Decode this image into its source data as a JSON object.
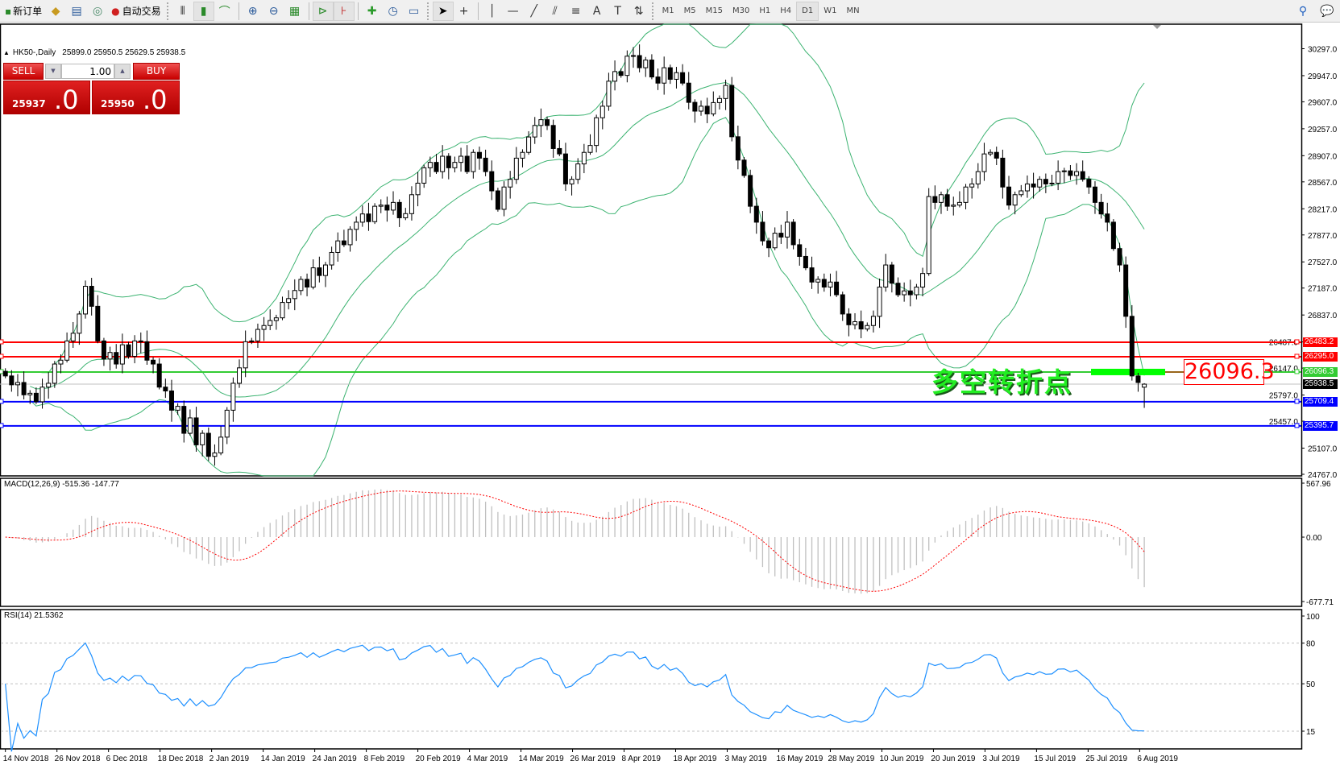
{
  "toolbar": {
    "new_order": "新订单",
    "auto_trading": "自动交易",
    "timeframes": [
      "M1",
      "M5",
      "M15",
      "M30",
      "H1",
      "H4",
      "D1",
      "W1",
      "MN"
    ],
    "active_timeframe": "D1",
    "text_tool": "A"
  },
  "header": {
    "symbol": "HK50-,Daily",
    "ohlc": "25899.0 25950.5 25629.5 25938.5"
  },
  "trade_panel": {
    "sell_label": "SELL",
    "buy_label": "BUY",
    "volume": "1.00",
    "sell_price_main": "25937",
    "sell_price_big": ".0",
    "buy_price_main": "25950",
    "buy_price_big": ".0",
    "color": "#d01010"
  },
  "annotation": {
    "text": "多空转折点",
    "price_box": "26096.3"
  },
  "hlines": [
    {
      "value": 26483.2,
      "label": "26483.2",
      "color": "#ff0000"
    },
    {
      "value": 26295.0,
      "label": "26295.0",
      "color": "#ff0000"
    },
    {
      "value": 26096.3,
      "label": "26096.3",
      "color": "#33cc33"
    },
    {
      "value": 25938.5,
      "label": "25938.5",
      "color": "#000000"
    },
    {
      "value": 25709.4,
      "label": "25709.4",
      "color": "#0000ff"
    },
    {
      "value": 25395.7,
      "label": "25395.7",
      "color": "#0000ff"
    }
  ],
  "macd": {
    "title": "MACD(12,26,9) -515.36 -147.77",
    "axis": [
      "567.96",
      "0.00",
      "-677.71"
    ],
    "range": [
      -677.71,
      567.96
    ]
  },
  "rsi": {
    "title": "RSI(14) 21.5362",
    "axis": [
      "100",
      "80",
      "50",
      "15"
    ],
    "levels": [
      80,
      50,
      15
    ]
  },
  "chart_data": {
    "type": "candlestick",
    "symbol": "HK50-",
    "timeframe": "Daily",
    "ylim": [
      24767.0,
      30297.0
    ],
    "y_ticks": [
      "30297.0",
      "29947.0",
      "29607.0",
      "29257.0",
      "28907.0",
      "28567.0",
      "28217.0",
      "27877.0",
      "27527.0",
      "27187.0",
      "26837.0",
      "26487.0",
      "26147.0",
      "25797.0",
      "25457.0",
      "25107.0",
      "24767.0"
    ],
    "x_ticks": [
      "14 Nov 2018",
      "26 Nov 2018",
      "6 Dec 2018",
      "18 Dec 2018",
      "2 Jan 2019",
      "14 Jan 2019",
      "24 Jan 2019",
      "8 Feb 2019",
      "20 Feb 2019",
      "4 Mar 2019",
      "14 Mar 2019",
      "26 Mar 2019",
      "8 Apr 2019",
      "18 Apr 2019",
      "3 May 2019",
      "16 May 2019",
      "28 May 2019",
      "10 Jun 2019",
      "20 Jun 2019",
      "3 Jul 2019",
      "15 Jul 2019",
      "25 Jul 2019",
      "6 Aug 2019"
    ],
    "last_bar": {
      "open": 25899.0,
      "high": 25950.5,
      "low": 25629.5,
      "close": 25938.5
    },
    "closes": [
      26045,
      25930,
      25960,
      25800,
      25820,
      25710,
      25900,
      25950,
      26200,
      26250,
      26500,
      26600,
      26850,
      27210,
      26950,
      26500,
      26265,
      26350,
      26200,
      26450,
      26300,
      26500,
      26490,
      26250,
      26200,
      25900,
      25850,
      25600,
      25650,
      25300,
      25500,
      25150,
      25300,
      25000,
      25045,
      25250,
      25600,
      25950,
      26150,
      26490,
      26500,
      26650,
      26700,
      26765,
      26800,
      27000,
      27050,
      27155,
      27300,
      27200,
      27450,
      27350,
      27487,
      27650,
      27800,
      27750,
      27950,
      28043,
      28150,
      28050,
      28250,
      28265,
      28200,
      28300,
      28100,
      28154,
      28400,
      28550,
      28750,
      28820,
      28700,
      28900,
      28750,
      28820,
      28900,
      28700,
      28950,
      28875,
      28700,
      28450,
      28210,
      28500,
      28600,
      28875,
      28950,
      29150,
      29300,
      29375,
      29300,
      29000,
      28930,
      28540,
      28600,
      28800,
      28950,
      29040,
      29400,
      29550,
      29875,
      30000,
      29950,
      30200,
      30208,
      30050,
      30150,
      29930,
      29850,
      30050,
      29900,
      29986,
      29850,
      29600,
      29486,
      29550,
      29450,
      29597,
      29650,
      29820,
      29153,
      28850,
      28650,
      28250,
      28043,
      27800,
      27710,
      27900,
      27850,
      28043,
      27750,
      27598,
      27450,
      27265,
      27300,
      27200,
      27265,
      27100,
      26850,
      26710,
      26750,
      26655,
      26700,
      26820,
      27200,
      27487,
      27250,
      27100,
      27150,
      27100,
      27200,
      27376,
      28376,
      28300,
      28400,
      28250,
      28265,
      28300,
      28500,
      28540,
      28700,
      28930,
      28950,
      28875,
      28500,
      28265,
      28400,
      28450,
      28540,
      28500,
      28600,
      28540,
      28550,
      28700,
      28710,
      28650,
      28700,
      28600,
      28500,
      28300,
      28150,
      28043,
      27700,
      27487,
      26820,
      26045,
      25960,
      25938.5
    ],
    "indicators": [
      "Bollinger Bands(20,2)",
      "MACD(12,26,9)",
      "RSI(14)"
    ],
    "colors": {
      "bands": "#3cb371",
      "macd_hist": "#c0c0c0",
      "macd_signal": "#ff0000",
      "rsi": "#1e90ff",
      "highlight_bar": "#00ff00"
    }
  }
}
